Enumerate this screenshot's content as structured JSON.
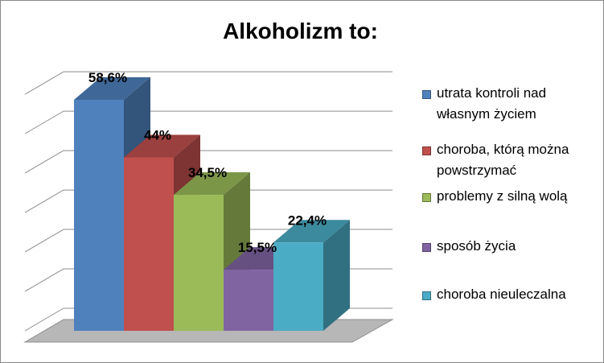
{
  "chart_data": {
    "type": "bar",
    "title": "Alkoholizm to:",
    "categories": [
      "utrata kontroli nad własnym życiem",
      "choroba, którą można powstrzymać",
      "problemy z silną wolą",
      "sposób życia",
      "choroba nieuleczalna"
    ],
    "legend_lines": [
      [
        "utrata kontroli nad",
        "własnym życiem"
      ],
      [
        "choroba, którą można",
        "powstrzymać"
      ],
      [
        "problemy z silną wolą"
      ],
      [
        "sposób życia"
      ],
      [
        "choroba nieuleczalna"
      ]
    ],
    "values": [
      58.6,
      44,
      34.5,
      15.5,
      22.4
    ],
    "data_labels": [
      "58,6%",
      "44%",
      "34,5%",
      "15,5%",
      "22,4%"
    ],
    "colors": [
      "#4F81BD",
      "#C0504D",
      "#9BBB59",
      "#8064A2",
      "#4BACC6"
    ],
    "ylim": [
      0,
      70
    ],
    "grid": true,
    "legend_position": "right",
    "style": "3d-clustered-column"
  }
}
